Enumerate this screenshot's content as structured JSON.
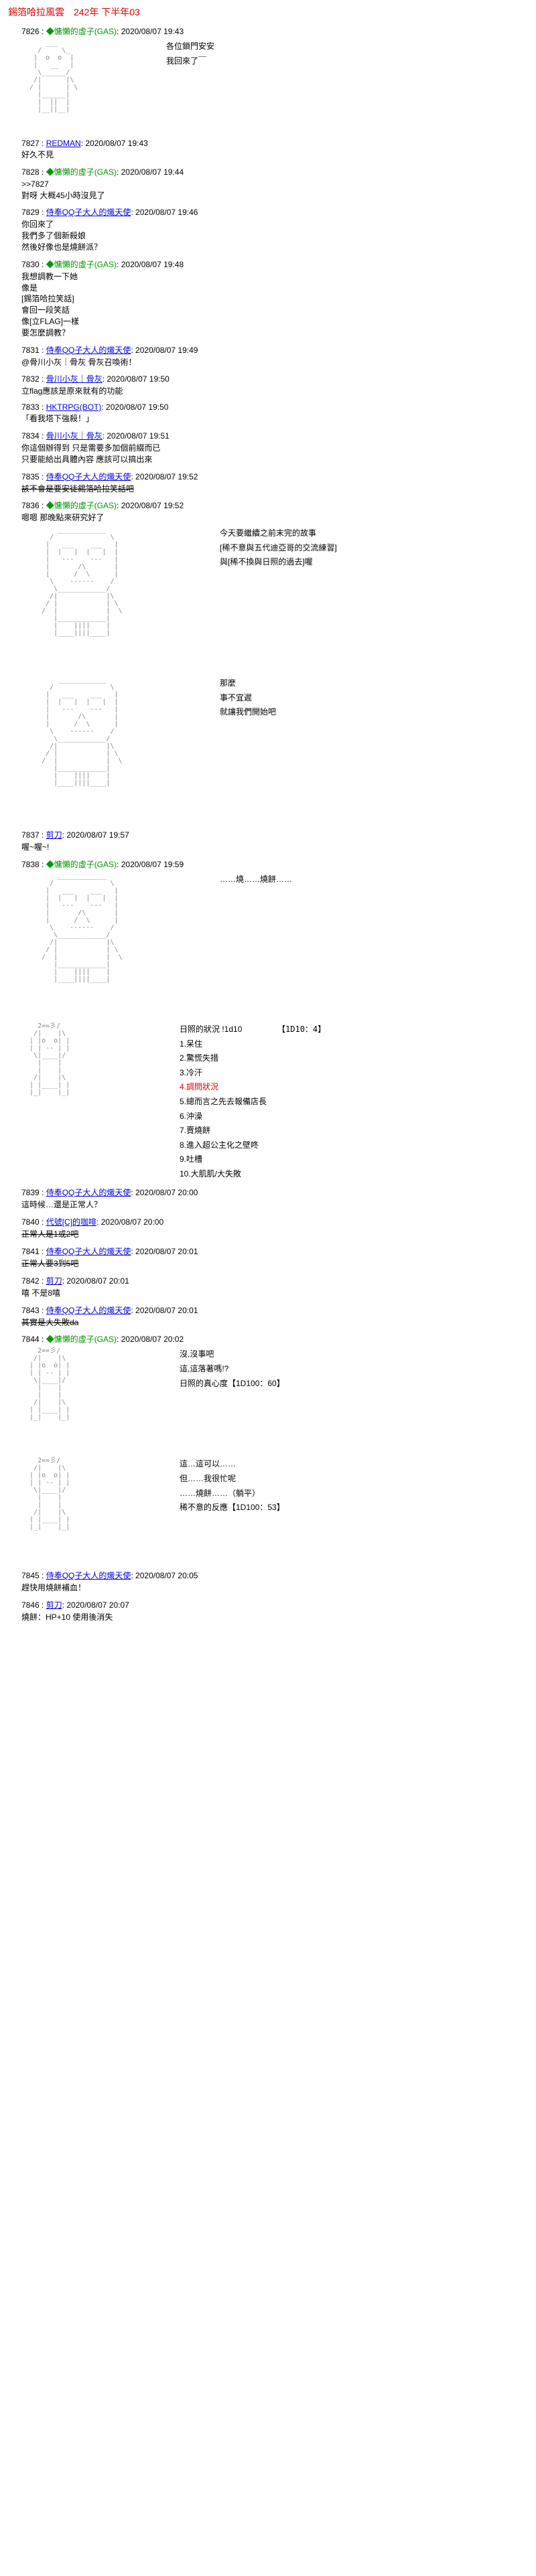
{
  "title": "錫箔哈拉風雲　242年 下半年03",
  "posts": [
    {
      "id": "7826",
      "author": "◆慵懶的虛子(GAS)",
      "cls": "author-green",
      "ts": "2020/08/07 19:43",
      "ascii": "big",
      "side": [
        "各位鎖門安安",
        "我回來了￣"
      ]
    },
    {
      "id": "7827",
      "author": "REDMAN",
      "cls": "author-link",
      "ts": "2020/08/07 19:43",
      "lines": [
        "好久不見"
      ]
    },
    {
      "id": "7828",
      "author": "◆慵懶的虛子(GAS)",
      "cls": "author-green",
      "ts": "2020/08/07 19:44",
      "lines": [
        ">>7827",
        "對呀 大概45小時沒見了"
      ]
    },
    {
      "id": "7829",
      "author": "侍奉QQ子大人的熾天使",
      "cls": "author-link",
      "ts": "2020/08/07 19:46",
      "lines": [
        "你回來了",
        "我們多了個新殺娘",
        "然後好像也是燒餅派？"
      ]
    },
    {
      "id": "7830",
      "author": "◆慵懶的虛子(GAS)",
      "cls": "author-green",
      "ts": "2020/08/07 19:48",
      "lines": [
        "我想調教一下她",
        "像是",
        "[錫箔哈拉笑話]",
        "會回一段笑話",
        "像[立FLAG]一樣",
        "要怎麼調教？"
      ]
    },
    {
      "id": "7831",
      "author": "侍奉QQ子大人的熾天使",
      "cls": "author-link",
      "ts": "2020/08/07 19:49",
      "lines": [
        "@骨川小灰｜骨灰 骨灰召喚術！"
      ]
    },
    {
      "id": "7832",
      "author": "骨川小灰｜骨灰",
      "cls": "author-link",
      "ts": "2020/08/07 19:50",
      "lines": [
        "立flag應該是原來就有的功能"
      ]
    },
    {
      "id": "7833",
      "author": "HKTRPG(BOT)",
      "cls": "author-link",
      "ts": "2020/08/07 19:50",
      "lines": [
        "「看我塔下強殺！」"
      ]
    },
    {
      "id": "7834",
      "author": "骨川小灰｜骨灰",
      "cls": "author-link",
      "ts": "2020/08/07 19:51",
      "lines": [
        "你這個辦得到 只是需要多加個前綴而已",
        "只要能給出具體內容 應該可以搞出來"
      ]
    },
    {
      "id": "7835",
      "author": "侍奉QQ子大人的熾天使",
      "cls": "author-link",
      "ts": "2020/08/07 19:52",
      "strike": [
        "該不會是要安徒錫箔哈拉笑話吧"
      ]
    },
    {
      "id": "7836",
      "author": "◆慵懶的虛子(GAS)",
      "cls": "author-green",
      "ts": "2020/08/07 19:52",
      "lines": [
        "嗯嗯 那晚點來研究好了"
      ],
      "ascii": "wide",
      "side": [
        "今天要繼續之前末完的故事",
        "[稀不意與五代迪亞哥的交流練習]",
        "與[稀不換與日照的過去]喔"
      ],
      "ascii2": "wide",
      "side2": [
        "那麼",
        "事不宜遲",
        "就讓我們開始吧"
      ]
    },
    {
      "id": "7837",
      "author": "剪刀",
      "cls": "author-link",
      "ts": "2020/08/07 19:57",
      "lines": [
        "喔~喔~!"
      ]
    },
    {
      "id": "7838",
      "author": "◆慵懶的虛子(GAS)",
      "cls": "author-green",
      "ts": "2020/08/07 19:59",
      "ascii": "wide",
      "side": [
        "……燒……燒餅……"
      ],
      "list": {
        "header": "日照的狀況 !1d10",
        "items": [
          "1.呆住",
          "2.驚慌失措",
          "3.冷汗",
          "4.調問狀況",
          "5.總而言之先去報備店長",
          "6.沖澡",
          "7.賣燒餅",
          "8.進入超公主化之壁咚",
          "9.吐槽",
          "10.大肌肌/大失敗"
        ],
        "red_idx": 3,
        "dice": "【1D10：4】"
      }
    },
    {
      "id": "7839",
      "author": "侍奉QQ子大人的熾天使",
      "cls": "author-link",
      "ts": "2020/08/07 20:00",
      "lines": [
        "這時候…還是正常人？"
      ]
    },
    {
      "id": "7840",
      "author": "代號[C]的咖啡",
      "cls": "author-link",
      "ts": "2020/08/07 20:00",
      "strike": [
        "正常人是1或2吧"
      ]
    },
    {
      "id": "7841",
      "author": "侍奉QQ子大人的熾天使",
      "cls": "author-link",
      "ts": "2020/08/07 20:01",
      "strike": [
        "正常人要3到5吧"
      ]
    },
    {
      "id": "7842",
      "author": "剪刀",
      "cls": "author-link",
      "ts": "2020/08/07 20:01",
      "lines": [
        "嘻 不是8嘻"
      ]
    },
    {
      "id": "7843",
      "author": "侍奉QQ子大人的熾天使",
      "cls": "author-link",
      "ts": "2020/08/07 20:01",
      "strike": [
        "其實是大失敗da"
      ]
    },
    {
      "id": "7844",
      "author": "◆慵懶的虛子(GAS)",
      "cls": "author-green",
      "ts": "2020/08/07 20:02",
      "ascii": "med",
      "side": [
        "沒,沒事吧",
        "這,這落著嗎!?",
        "",
        "日照的真心度【1D100：60】"
      ],
      "ascii2": "med",
      "side2": [
        "這…這可以……",
        "但……我很忙呢",
        "",
        "……燒餅……（躺平）",
        "",
        "稀不意的反應【1D100：53】"
      ]
    },
    {
      "id": "7845",
      "author": "侍奉QQ子大人的熾天使",
      "cls": "author-link",
      "ts": "2020/08/07 20:05",
      "lines": [
        "趕快用燒餅補血！"
      ]
    },
    {
      "id": "7846",
      "author": "剪刀",
      "cls": "author-link",
      "ts": "2020/08/07 20:07",
      "lines": [
        "燒餅：HP+10 使用後消失"
      ]
    }
  ],
  "ascii_samples": {
    "big": "      ___\n    /     \\_\n   |  o  o  |\n   |   __   |\n    \\______/\n   /|      |\\\n  / |      | \\\n    |______|\n    |  ||  |\n    |__||__|",
    "wide": "         ____________\n       /              \\\n      |   ___    ___   |\n      |  |   |  |   |  |\n      |   ---    ---   |\n      |       /\\       |\n      |      /  \\      |\n       \\    ------    /\n        \\____________/\n       /|            |\\\n      / |            | \\\n     /  |            |  \\\n        |____________|\n        |    ||||    |\n        |____||||____|",
    "med": "    2==彡/\n   /|    |\\\n  | |o  o| |\n  | | -- | |\n   \\|____|/\n    |    |\n    |    |\n   /|    |\\\n  | |____| |\n  |_|    |_|"
  }
}
